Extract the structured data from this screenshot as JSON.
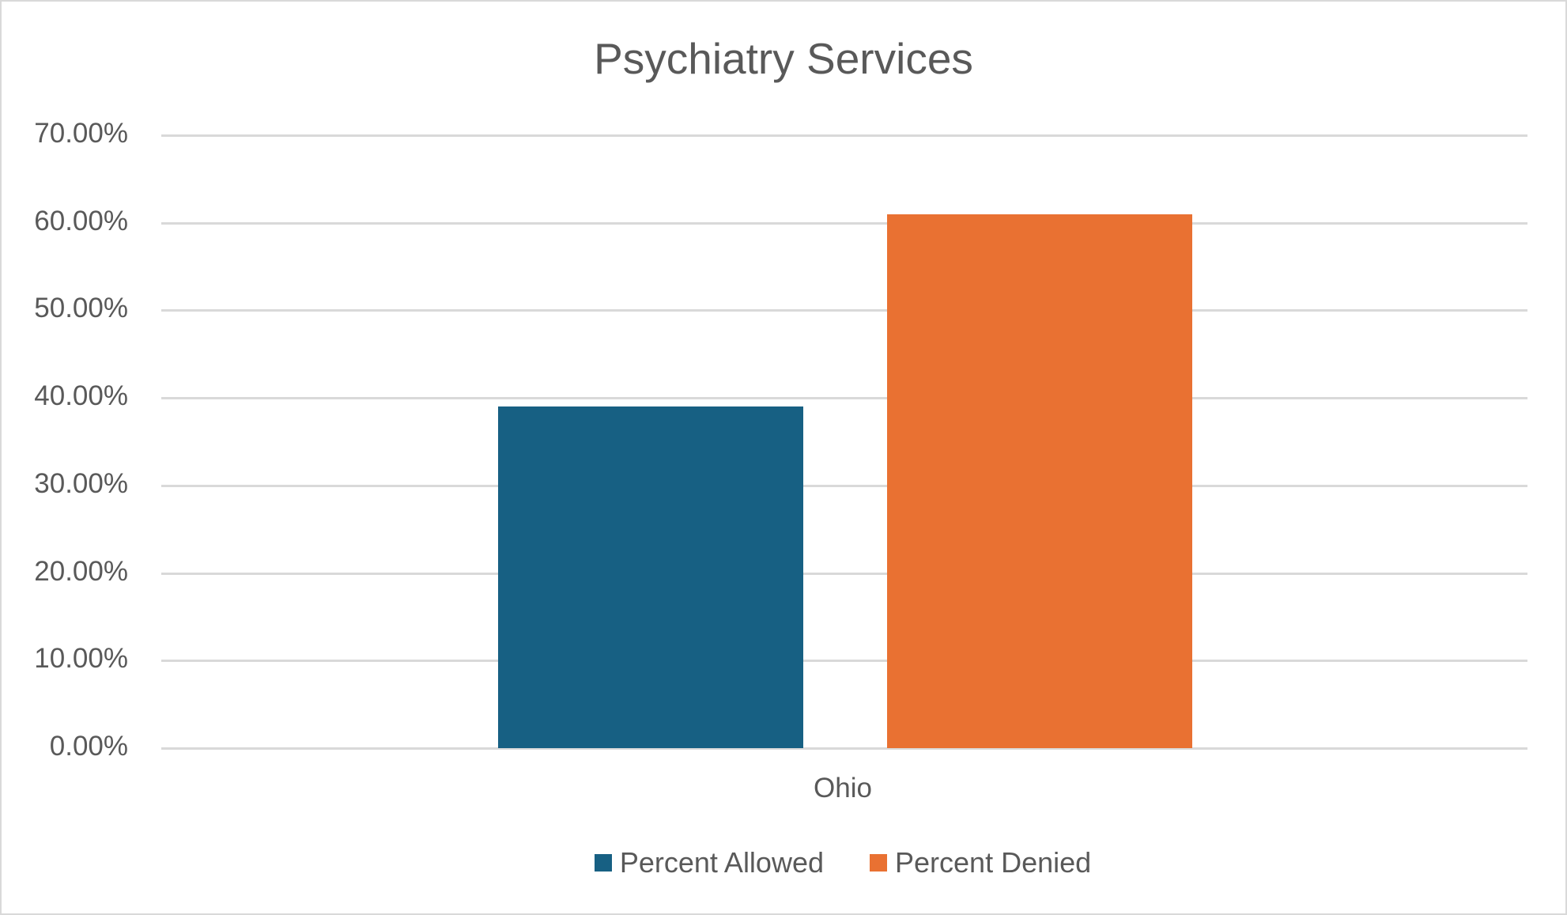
{
  "chart_data": {
    "type": "bar",
    "title": "Psychiatry Services",
    "categories": [
      "Ohio"
    ],
    "series": [
      {
        "name": "Percent Allowed",
        "values": [
          0.39
        ],
        "color": "#176083"
      },
      {
        "name": "Percent Denied",
        "values": [
          0.61
        ],
        "color": "#E97132"
      }
    ],
    "xlabel": "",
    "ylabel": "",
    "ylim": [
      0,
      0.7
    ],
    "yticks": [
      "0.00%",
      "10.00%",
      "20.00%",
      "30.00%",
      "40.00%",
      "50.00%",
      "60.00%",
      "70.00%"
    ],
    "grid": true,
    "legend_position": "bottom"
  },
  "colors": {
    "gridline": "#d9d9d9",
    "text": "#595959",
    "border": "#d9d9d9"
  }
}
